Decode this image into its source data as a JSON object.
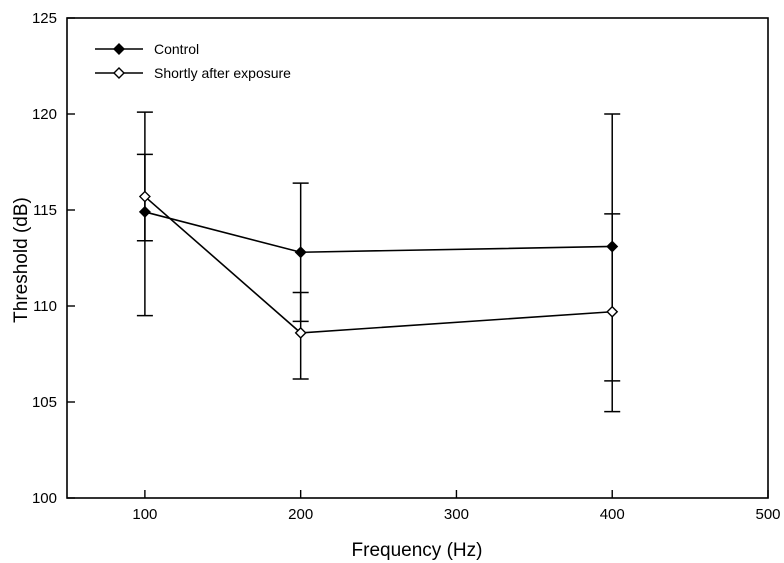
{
  "chart_data": {
    "type": "line",
    "title": "",
    "xlabel": "Frequency (Hz)",
    "ylabel": "Threshold (dB)",
    "xlim": [
      50,
      500
    ],
    "ylim": [
      100,
      125
    ],
    "xticks": [
      100,
      200,
      300,
      400,
      500
    ],
    "yticks": [
      100,
      105,
      110,
      115,
      120,
      125
    ],
    "grid": false,
    "legend_position": "top-left",
    "series": [
      {
        "name": "Control",
        "marker": "filled-diamond",
        "color": "#000000",
        "x": [
          100,
          200,
          400
        ],
        "y": [
          114.9,
          112.8,
          113.1
        ],
        "err_low": [
          109.5,
          109.2,
          106.1
        ],
        "err_high": [
          120.1,
          116.4,
          120.0
        ]
      },
      {
        "name": "Shortly after exposure",
        "marker": "open-diamond",
        "color": "#000000",
        "x": [
          100,
          200,
          400
        ],
        "y": [
          115.7,
          108.6,
          109.7
        ],
        "err_low": [
          113.4,
          106.2,
          104.5
        ],
        "err_high": [
          117.9,
          110.7,
          114.8
        ]
      }
    ]
  }
}
